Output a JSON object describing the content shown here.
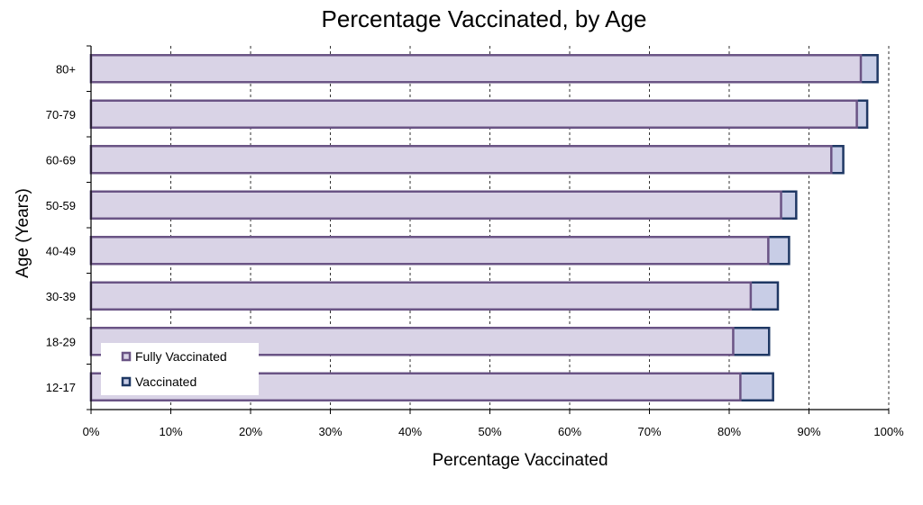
{
  "chart_data": {
    "type": "bar",
    "orientation": "horizontal",
    "stacked": false,
    "title": "Percentage Vaccinated, by Age",
    "xlabel": "Percentage Vaccinated",
    "ylabel": "Age (Years)",
    "xlim": [
      0,
      100
    ],
    "xticks": [
      "0%",
      "10%",
      "20%",
      "30%",
      "40%",
      "50%",
      "60%",
      "70%",
      "80%",
      "90%",
      "100%"
    ],
    "categories": [
      "80+",
      "70-79",
      "60-69",
      "50-59",
      "40-49",
      "30-39",
      "18-29",
      "12-17"
    ],
    "series": [
      {
        "name": "Vaccinated",
        "color": "#c8cde6",
        "stroke": "#1f3864",
        "values": [
          98.6,
          97.3,
          94.3,
          88.4,
          87.5,
          86.1,
          85.0,
          85.5
        ]
      },
      {
        "name": "Fully Vaccinated",
        "color": "#d9d3e6",
        "stroke": "#6a5485",
        "values": [
          96.5,
          96.0,
          92.8,
          86.5,
          84.9,
          82.7,
          80.5,
          81.4
        ]
      }
    ],
    "legend": {
      "position": "bottom-left",
      "entries": [
        "Fully Vaccinated",
        "Vaccinated"
      ]
    },
    "grid": {
      "vertical": true,
      "style": "dashed"
    }
  }
}
